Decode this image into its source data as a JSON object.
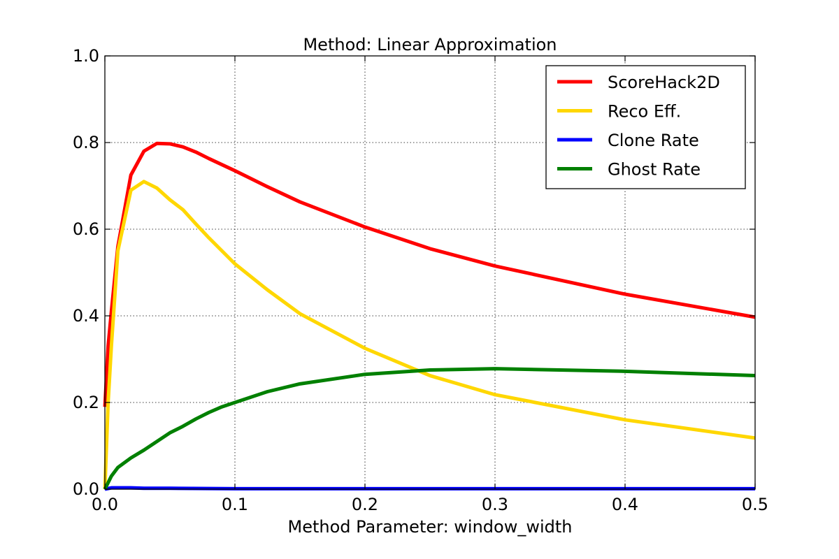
{
  "chart_data": {
    "type": "line",
    "title": "Method: Linear Approximation",
    "xlabel": "Method Parameter: window_width",
    "ylabel": "",
    "xlim": [
      0.0,
      0.5
    ],
    "ylim": [
      0.0,
      1.0
    ],
    "grid": true,
    "legend_position": "top-right",
    "x_ticks": [
      {
        "value": 0.0,
        "label": "0.0"
      },
      {
        "value": 0.1,
        "label": "0.1"
      },
      {
        "value": 0.2,
        "label": "0.2"
      },
      {
        "value": 0.3,
        "label": "0.3"
      },
      {
        "value": 0.4,
        "label": "0.4"
      },
      {
        "value": 0.5,
        "label": "0.5"
      }
    ],
    "y_ticks": [
      {
        "value": 0.0,
        "label": "0.0"
      },
      {
        "value": 0.2,
        "label": "0.2"
      },
      {
        "value": 0.4,
        "label": "0.4"
      },
      {
        "value": 0.6,
        "label": "0.6"
      },
      {
        "value": 0.8,
        "label": "0.8"
      },
      {
        "value": 1.0,
        "label": "1.0"
      }
    ],
    "series": [
      {
        "name": "ScoreHack2D",
        "color": "#ff0000",
        "x": [
          0.0,
          0.0025,
          0.005,
          0.01,
          0.02,
          0.03,
          0.04,
          0.05,
          0.06,
          0.07,
          0.08,
          0.1,
          0.125,
          0.15,
          0.2,
          0.25,
          0.3,
          0.4,
          0.5
        ],
        "y": [
          0.19,
          0.33,
          0.41,
          0.56,
          0.725,
          0.78,
          0.798,
          0.797,
          0.79,
          0.778,
          0.763,
          0.735,
          0.698,
          0.663,
          0.605,
          0.555,
          0.515,
          0.45,
          0.397
        ]
      },
      {
        "name": "Reco Eff.",
        "color": "#ffd700",
        "x": [
          0.0,
          0.0025,
          0.005,
          0.01,
          0.02,
          0.03,
          0.04,
          0.05,
          0.06,
          0.07,
          0.08,
          0.1,
          0.125,
          0.15,
          0.2,
          0.25,
          0.3,
          0.4,
          0.5
        ],
        "y": [
          0.0,
          0.2,
          0.33,
          0.55,
          0.69,
          0.71,
          0.695,
          0.668,
          0.645,
          0.612,
          0.58,
          0.52,
          0.46,
          0.405,
          0.325,
          0.262,
          0.218,
          0.16,
          0.118
        ]
      },
      {
        "name": "Clone Rate",
        "color": "#0000ff",
        "x": [
          0.0,
          0.005,
          0.01,
          0.02,
          0.03,
          0.05,
          0.1,
          0.2,
          0.3,
          0.4,
          0.5
        ],
        "y": [
          0.0,
          0.003,
          0.003,
          0.003,
          0.002,
          0.002,
          0.001,
          0.001,
          0.001,
          0.001,
          0.001
        ]
      },
      {
        "name": "Ghost Rate",
        "color": "#008000",
        "x": [
          0.0,
          0.0025,
          0.005,
          0.01,
          0.02,
          0.03,
          0.04,
          0.05,
          0.06,
          0.07,
          0.08,
          0.09,
          0.1,
          0.125,
          0.15,
          0.2,
          0.25,
          0.3,
          0.4,
          0.5
        ],
        "y": [
          0.0,
          0.015,
          0.03,
          0.05,
          0.072,
          0.09,
          0.11,
          0.13,
          0.145,
          0.162,
          0.177,
          0.19,
          0.2,
          0.225,
          0.243,
          0.265,
          0.275,
          0.278,
          0.272,
          0.262
        ]
      }
    ]
  }
}
